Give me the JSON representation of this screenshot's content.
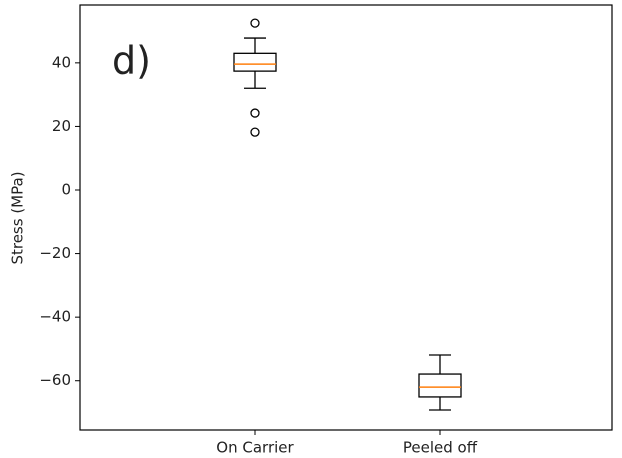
{
  "chart_data": {
    "type": "box",
    "annotation": "d)",
    "ylabel": "Stress (MPa)",
    "categories": [
      "On Carrier",
      "Peeled off"
    ],
    "boxes": [
      {
        "whislo": 32,
        "q1": 37.4,
        "med": 39.6,
        "q3": 43,
        "whishi": 47.8,
        "fliers": [
          52.5,
          24.2,
          18.2
        ]
      },
      {
        "whislo": -69.2,
        "q1": -65.1,
        "med": -62,
        "q3": -57.9,
        "whishi": -51.9,
        "fliers": []
      }
    ],
    "box_color": "#000000",
    "median_color": "#ff7f0e",
    "ylim": [
      -75.5,
      58.2
    ],
    "yticks": [
      {
        "value": -60,
        "label": "−60"
      },
      {
        "value": -40,
        "label": "−40"
      },
      {
        "value": -20,
        "label": "−20"
      },
      0,
      20,
      40
    ]
  }
}
